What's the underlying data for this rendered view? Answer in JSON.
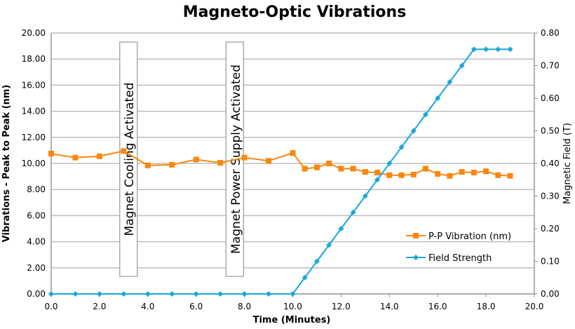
{
  "chart_data": {
    "type": "line",
    "title": "Magneto-Optic Vibrations",
    "xlabel": "Time (Minutes)",
    "ylabel": "Vibrations - Peak to Peak (nm)",
    "y2label": "Magnetic Field (T)",
    "xlim": [
      0,
      20
    ],
    "ylim": [
      0,
      20
    ],
    "y2lim": [
      0,
      0.8
    ],
    "x_ticks": [
      "0.0",
      "2.0",
      "4.0",
      "6.0",
      "8.0",
      "10.0",
      "12.0",
      "14.0",
      "16.0",
      "18.0",
      "20.0"
    ],
    "y_ticks": [
      "0.00",
      "2.00",
      "4.00",
      "6.00",
      "8.00",
      "10.00",
      "12.00",
      "14.00",
      "16.00",
      "18.00",
      "20.00"
    ],
    "y2_ticks": [
      "0.00",
      "0.10",
      "0.20",
      "0.30",
      "0.40",
      "0.50",
      "0.60",
      "0.70",
      "0.80"
    ],
    "grid": "horizontal",
    "legend_position": "bottom-right",
    "x": [
      0,
      1,
      2,
      3,
      4,
      5,
      6,
      7,
      8,
      9,
      10,
      10.5,
      11,
      11.5,
      12,
      12.5,
      13,
      13.5,
      14,
      14.5,
      15,
      15.5,
      16,
      16.5,
      17,
      17.5,
      18,
      18.5,
      19
    ],
    "series": [
      {
        "name": "P-P Vibration (nm)",
        "axis": "left",
        "color": "#f7870f",
        "marker": "square",
        "values": [
          10.75,
          10.45,
          10.55,
          10.95,
          9.85,
          9.9,
          10.3,
          10.05,
          10.45,
          10.2,
          10.8,
          9.6,
          9.7,
          10.0,
          9.6,
          9.6,
          9.35,
          9.3,
          9.1,
          9.1,
          9.15,
          9.6,
          9.2,
          9.05,
          9.35,
          9.3,
          9.4,
          9.1,
          9.05
        ]
      },
      {
        "name": "Field Strength",
        "axis": "right",
        "color": "#1aa8dc",
        "marker": "diamond",
        "values": [
          0,
          0,
          0,
          0,
          0,
          0,
          0,
          0,
          0,
          0,
          0,
          0.05,
          0.1,
          0.15,
          0.2,
          0.25,
          0.3,
          0.35,
          0.4,
          0.45,
          0.5,
          0.55,
          0.6,
          0.65,
          0.7,
          0.75,
          0.75,
          0.75,
          0.75
        ]
      }
    ],
    "annotations": [
      {
        "text": "Magnet Cooling Activated",
        "x": 3.2
      },
      {
        "text": "Magnet Power Supply Activated",
        "x": 7.6
      }
    ]
  }
}
